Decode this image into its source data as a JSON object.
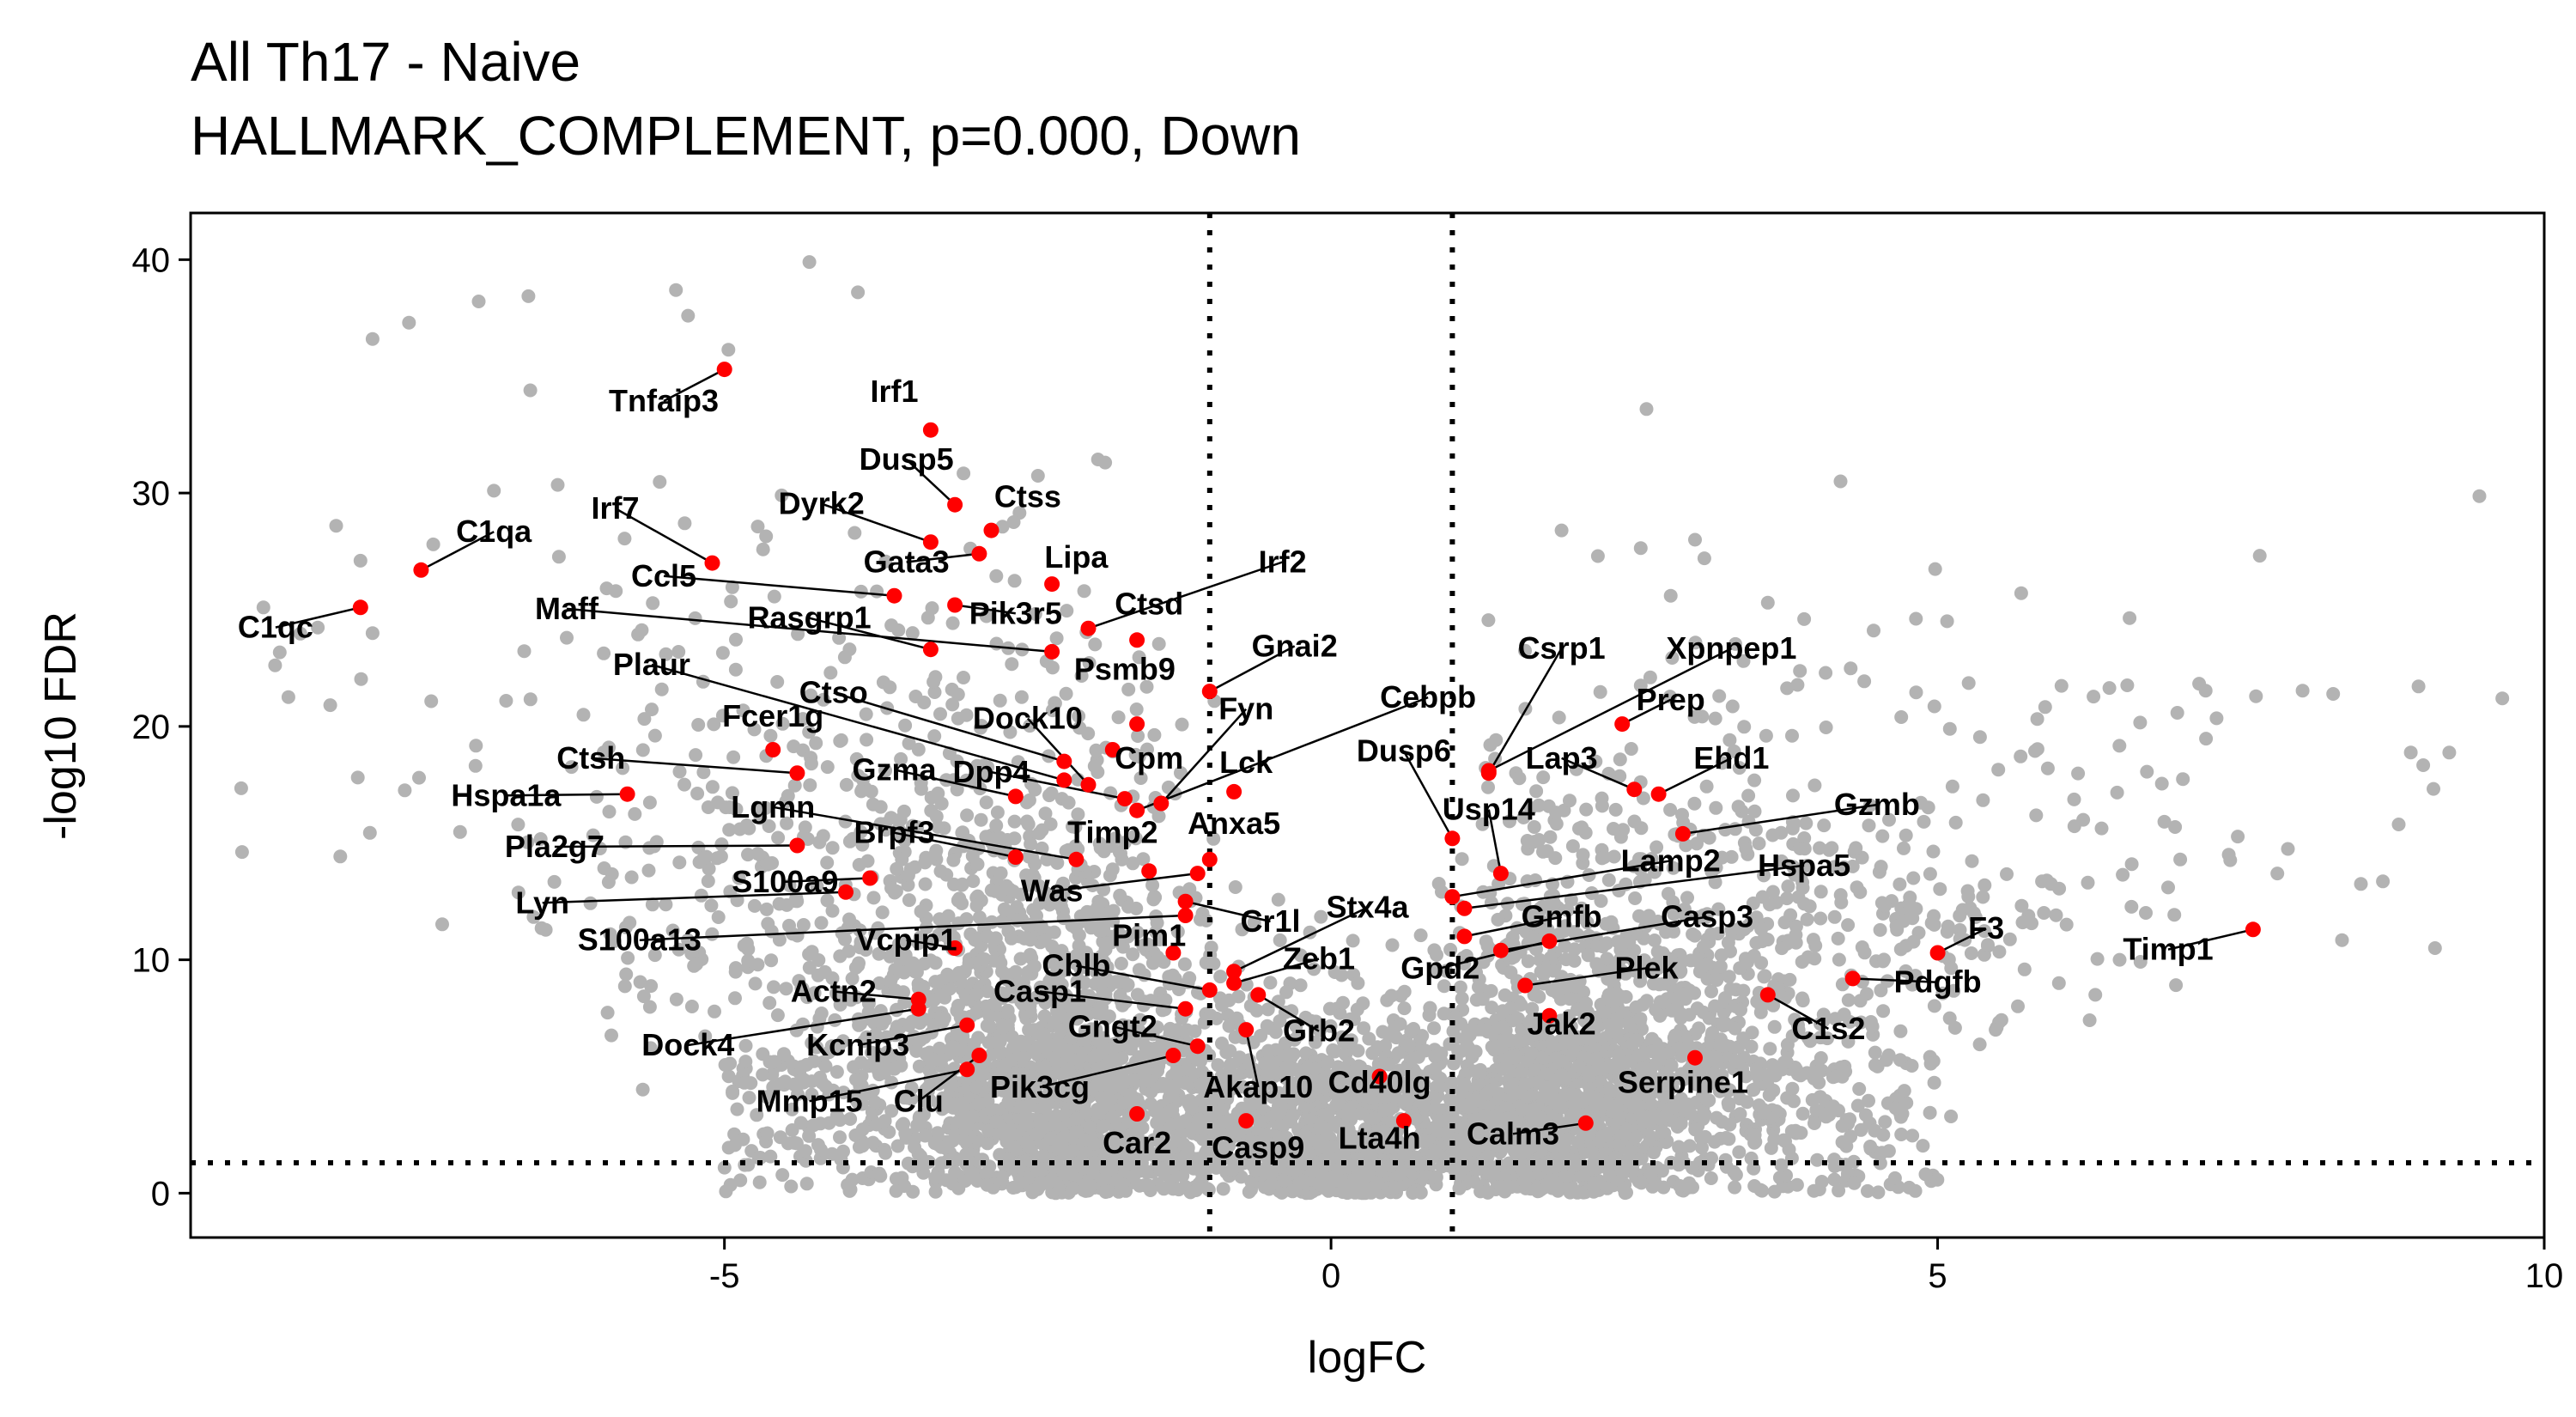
{
  "chart_data": {
    "type": "scatter",
    "title": "All Th17 - Naive",
    "subtitle": "HALLMARK_COMPLEMENT, p=0.000, Down",
    "xlabel": "logFC",
    "ylabel": "-log10 FDR",
    "xlim": [
      -9.4,
      10.0
    ],
    "ylim": [
      -1.9,
      42.0
    ],
    "xticks": [
      -5,
      0,
      5,
      10
    ],
    "yticks": [
      0,
      10,
      20,
      30,
      40
    ],
    "xtick_labels": [
      "-5",
      "0",
      "5",
      "10"
    ],
    "ytick_labels": [
      "0",
      "10",
      "20",
      "30",
      "40"
    ],
    "grid": false,
    "legend": "none",
    "threshold_lines": {
      "x": [
        -1,
        1
      ],
      "y": [
        1.3
      ]
    },
    "colors": {
      "background_points": "#b3b3b3",
      "highlight_points": "#ff0000",
      "lines": "#000000"
    },
    "background_outliers": [
      {
        "x": -7.9,
        "y": 36.6
      },
      {
        "x": -7.6,
        "y": 37.3
      },
      {
        "x": -6.6,
        "y": 34.4
      },
      {
        "x": -5.4,
        "y": 38.7
      },
      {
        "x": -5.3,
        "y": 37.6
      },
      {
        "x": -4.3,
        "y": 39.9
      },
      {
        "x": -3.9,
        "y": 38.6
      },
      {
        "x": -8.8,
        "y": 25.1
      },
      {
        "x": -8.2,
        "y": 28.6
      },
      {
        "x": -8.0,
        "y": 27.1
      },
      {
        "x": -7.4,
        "y": 27.8
      },
      {
        "x": -6.9,
        "y": 30.1
      },
      {
        "x": -6.3,
        "y": 23.8
      },
      {
        "x": -7.9,
        "y": 24.0
      },
      {
        "x": -6.8,
        "y": 21.1
      },
      {
        "x": 2.6,
        "y": 33.6
      },
      {
        "x": 4.2,
        "y": 30.5
      },
      {
        "x": 3.6,
        "y": 25.3
      },
      {
        "x": 5.9,
        "y": 13.4
      },
      {
        "x": 6.2,
        "y": 16.0
      },
      {
        "x": 6.6,
        "y": 14.1
      },
      {
        "x": 6.9,
        "y": 13.1
      },
      {
        "x": 7.0,
        "y": 14.3
      },
      {
        "x": 7.8,
        "y": 13.7
      },
      {
        "x": 8.8,
        "y": 15.8
      },
      {
        "x": 9.1,
        "y": 10.5
      },
      {
        "x": 7.4,
        "y": 14.5
      },
      {
        "x": 6.5,
        "y": 10.0
      },
      {
        "x": 6.0,
        "y": 9.0
      },
      {
        "x": 5.7,
        "y": 11.6
      },
      {
        "x": 6.3,
        "y": 8.5
      },
      {
        "x": 5.1,
        "y": 7.5
      },
      {
        "x": 4.8,
        "y": 13.5
      },
      {
        "x": 4.6,
        "y": 16.0
      },
      {
        "x": 5.3,
        "y": 12.0
      },
      {
        "x": 4.3,
        "y": 14.0
      },
      {
        "x": 3.8,
        "y": 19.6
      },
      {
        "x": 3.2,
        "y": 21.3
      },
      {
        "x": 3.4,
        "y": 22.8
      },
      {
        "x": 4.7,
        "y": 20.4
      },
      {
        "x": 3.9,
        "y": 24.6
      },
      {
        "x": 2.8,
        "y": 25.6
      },
      {
        "x": 3.0,
        "y": 28.0
      },
      {
        "x": 2.2,
        "y": 27.3
      },
      {
        "x": 1.9,
        "y": 28.4
      }
    ],
    "highlighted_genes": [
      {
        "gene": "Tnfaip3",
        "x": -5.0,
        "y": 35.3
      },
      {
        "gene": "Irf1",
        "x": -3.3,
        "y": 32.7
      },
      {
        "gene": "Dusp5",
        "x": -3.1,
        "y": 29.5
      },
      {
        "gene": "Ctss",
        "x": -2.8,
        "y": 28.4
      },
      {
        "gene": "Dyrk2",
        "x": -3.3,
        "y": 27.9
      },
      {
        "gene": "Lipa",
        "x": -2.3,
        "y": 26.1
      },
      {
        "gene": "Gata3",
        "x": -2.9,
        "y": 27.4
      },
      {
        "gene": "Irf7",
        "x": -5.1,
        "y": 27.0
      },
      {
        "gene": "C1qa",
        "x": -7.5,
        "y": 26.7
      },
      {
        "gene": "Ccl5",
        "x": -3.6,
        "y": 25.6
      },
      {
        "gene": "C1qc",
        "x": -8.0,
        "y": 25.1
      },
      {
        "gene": "Irf2",
        "x": -2.0,
        "y": 24.2
      },
      {
        "gene": "Ctsd",
        "x": -1.6,
        "y": 23.7
      },
      {
        "gene": "Maff",
        "x": -2.3,
        "y": 23.2
      },
      {
        "gene": "Rasgrp1",
        "x": -3.3,
        "y": 23.3
      },
      {
        "gene": "Pik3r5",
        "x": -3.1,
        "y": 25.2
      },
      {
        "gene": "Gnai2",
        "x": -1.0,
        "y": 21.5
      },
      {
        "gene": "Psmb9",
        "x": -1.6,
        "y": 20.1
      },
      {
        "gene": "Plaur",
        "x": -2.2,
        "y": 17.7
      },
      {
        "gene": "Ctso",
        "x": -2.2,
        "y": 18.5
      },
      {
        "gene": "Fyn",
        "x": -1.4,
        "y": 16.7
      },
      {
        "gene": "Cebpb",
        "x": -1.6,
        "y": 16.4
      },
      {
        "gene": "Dock10",
        "x": -2.0,
        "y": 17.5
      },
      {
        "gene": "Cpm",
        "x": -1.8,
        "y": 19.0
      },
      {
        "gene": "Lck",
        "x": -0.8,
        "y": 17.2
      },
      {
        "gene": "Fcer1g",
        "x": -4.6,
        "y": 19.0
      },
      {
        "gene": "Ctsh",
        "x": -4.4,
        "y": 18.0
      },
      {
        "gene": "Gzma",
        "x": -2.6,
        "y": 17.0
      },
      {
        "gene": "Dpp4",
        "x": -1.7,
        "y": 16.9
      },
      {
        "gene": "Hspa1a",
        "x": -5.8,
        "y": 17.1
      },
      {
        "gene": "Lgmn",
        "x": -2.1,
        "y": 14.3
      },
      {
        "gene": "Brpf3",
        "x": -2.6,
        "y": 14.4
      },
      {
        "gene": "Timp2",
        "x": -1.5,
        "y": 13.8
      },
      {
        "gene": "Anxa5",
        "x": -1.0,
        "y": 14.3
      },
      {
        "gene": "Pla2g7",
        "x": -4.4,
        "y": 14.9
      },
      {
        "gene": "S100a9",
        "x": -3.8,
        "y": 13.5
      },
      {
        "gene": "Was",
        "x": -1.1,
        "y": 13.7
      },
      {
        "gene": "Lyn",
        "x": -4.0,
        "y": 12.9
      },
      {
        "gene": "Cr1l",
        "x": -1.2,
        "y": 12.5
      },
      {
        "gene": "S100a13",
        "x": -1.2,
        "y": 11.9
      },
      {
        "gene": "Vcpip1",
        "x": -3.1,
        "y": 10.5
      },
      {
        "gene": "Pim1",
        "x": -1.3,
        "y": 10.3
      },
      {
        "gene": "Stx4a",
        "x": -0.8,
        "y": 9.5
      },
      {
        "gene": "Zeb1",
        "x": -0.8,
        "y": 9.0
      },
      {
        "gene": "Cblb",
        "x": -1.0,
        "y": 8.7
      },
      {
        "gene": "Actn2",
        "x": -3.4,
        "y": 8.3
      },
      {
        "gene": "Casp1",
        "x": -1.2,
        "y": 7.9
      },
      {
        "gene": "Dock4",
        "x": -3.4,
        "y": 7.9
      },
      {
        "gene": "Kcnip3",
        "x": -3.0,
        "y": 7.2
      },
      {
        "gene": "Gngt2",
        "x": -1.1,
        "y": 6.3
      },
      {
        "gene": "Grb2",
        "x": -0.6,
        "y": 8.5
      },
      {
        "gene": "Mmp15",
        "x": -3.0,
        "y": 5.3
      },
      {
        "gene": "Clu",
        "x": -2.9,
        "y": 5.9
      },
      {
        "gene": "Pik3cg",
        "x": -1.3,
        "y": 5.9
      },
      {
        "gene": "Akap10",
        "x": -0.7,
        "y": 7.0
      },
      {
        "gene": "Cd40lg",
        "x": 0.4,
        "y": 5.0
      },
      {
        "gene": "Car2",
        "x": -1.6,
        "y": 3.4
      },
      {
        "gene": "Casp9",
        "x": -0.7,
        "y": 3.1
      },
      {
        "gene": "Lta4h",
        "x": 0.6,
        "y": 3.1
      },
      {
        "gene": "Calm3",
        "x": 2.1,
        "y": 3.0
      },
      {
        "gene": "Csrp1",
        "x": 1.3,
        "y": 18.0
      },
      {
        "gene": "Xpnpep1",
        "x": 1.3,
        "y": 18.1
      },
      {
        "gene": "Prep",
        "x": 2.4,
        "y": 20.1
      },
      {
        "gene": "Dusp6",
        "x": 1.0,
        "y": 15.2
      },
      {
        "gene": "Lap3",
        "x": 2.5,
        "y": 17.3
      },
      {
        "gene": "Ehd1",
        "x": 2.7,
        "y": 17.1
      },
      {
        "gene": "Usp14",
        "x": 1.4,
        "y": 13.7
      },
      {
        "gene": "Gzmb",
        "x": 2.9,
        "y": 15.4
      },
      {
        "gene": "Lamp2",
        "x": 1.0,
        "y": 12.7
      },
      {
        "gene": "Hspa5",
        "x": 1.1,
        "y": 12.2
      },
      {
        "gene": "Gmfb",
        "x": 1.1,
        "y": 11.0
      },
      {
        "gene": "Casp3",
        "x": 1.4,
        "y": 10.4
      },
      {
        "gene": "F3",
        "x": 5.0,
        "y": 10.3
      },
      {
        "gene": "Timp1",
        "x": 7.6,
        "y": 11.3
      },
      {
        "gene": "Gpd2",
        "x": 1.8,
        "y": 10.8
      },
      {
        "gene": "Plek",
        "x": 1.6,
        "y": 8.9
      },
      {
        "gene": "Pdgfb",
        "x": 4.3,
        "y": 9.2
      },
      {
        "gene": "Jak2",
        "x": 1.8,
        "y": 7.6
      },
      {
        "gene": "C1s2",
        "x": 3.6,
        "y": 8.5
      },
      {
        "gene": "Serpine1",
        "x": 3.0,
        "y": 5.8
      }
    ]
  }
}
